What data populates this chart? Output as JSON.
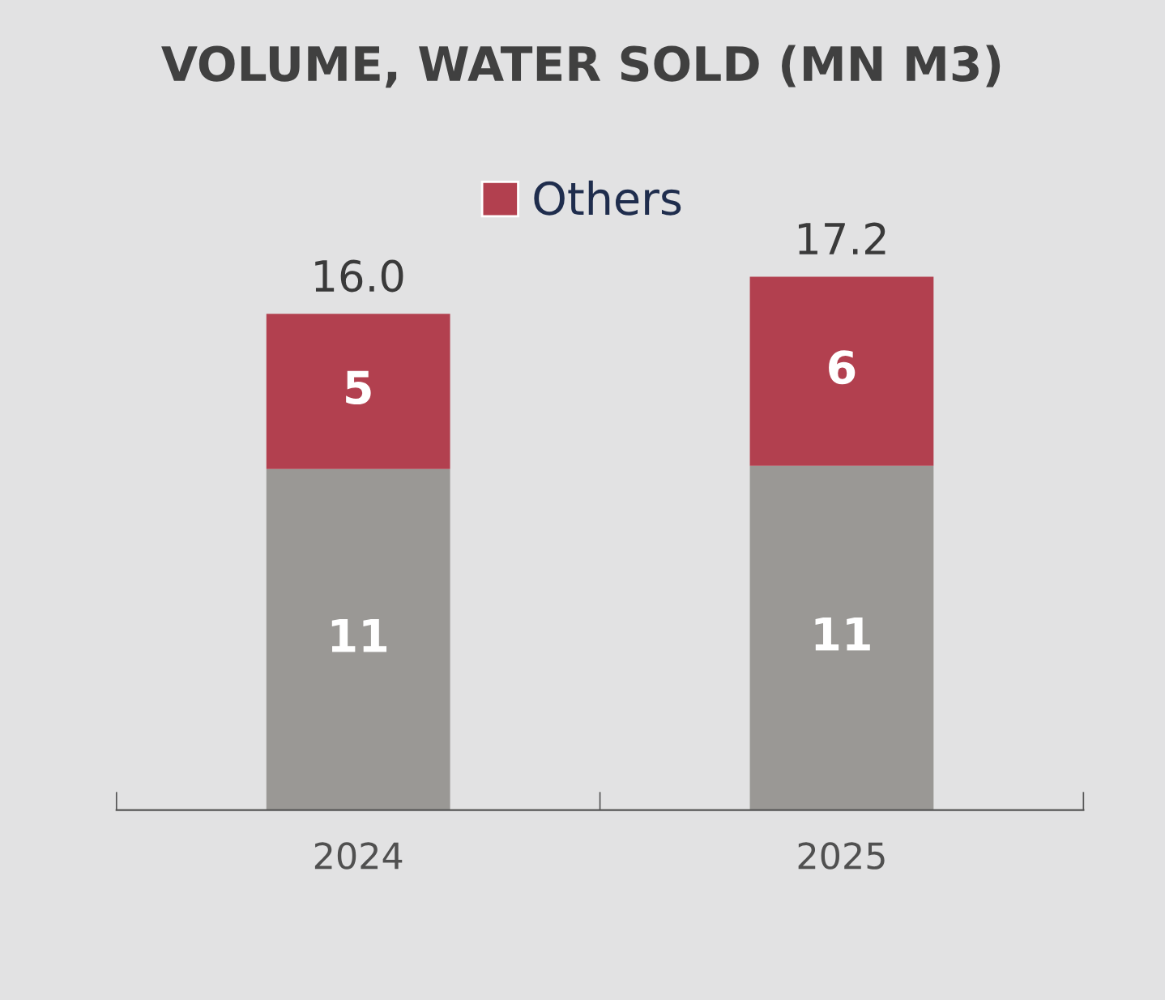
{
  "chart_data": {
    "type": "bar",
    "title": "VOLUME, WATER SOLD (MN M3)",
    "categories": [
      "2024",
      "2025"
    ],
    "stacked": true,
    "legend": "top",
    "grid": false,
    "series": [
      {
        "color": "#9a9895",
        "values": [
          11,
          11.1
        ],
        "value_labels": [
          "11",
          "11"
        ]
      },
      {
        "name": "Others",
        "color": "#b2404f",
        "values": [
          5,
          6.1
        ],
        "value_labels": [
          "5",
          "6"
        ]
      }
    ],
    "totals": [
      "16.0",
      "17.2"
    ]
  }
}
